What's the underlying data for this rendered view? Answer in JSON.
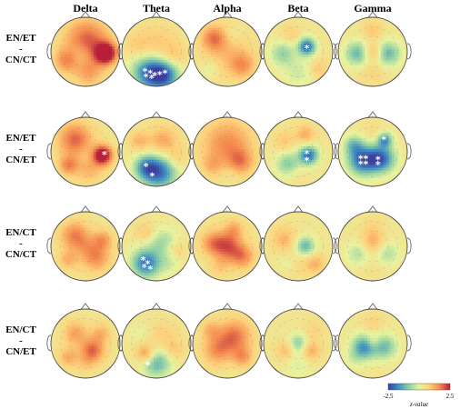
{
  "bands": [
    "Delta",
    "Theta",
    "Alpha",
    "Beta",
    "Gamma"
  ],
  "rows": [
    {
      "lines": [
        "EN/ET",
        "-",
        "CN/CT"
      ]
    },
    {
      "lines": [
        "EN/ET",
        "-",
        "CN/ET"
      ]
    },
    {
      "lines": [
        "EN/CT",
        "-",
        "CN/CT"
      ]
    },
    {
      "lines": [
        "EN/CT",
        "-",
        "CN/ET"
      ]
    }
  ],
  "significance_marker": "*",
  "colorbar": {
    "min_label": "-2.5",
    "max_label": "2.5",
    "title": "z-value",
    "colors": [
      "#3a3fa0",
      "#3f8ec4",
      "#8fd0a4",
      "#e8f3a0",
      "#fdd07a",
      "#f48a4f",
      "#b81f3b"
    ]
  },
  "significant_markers": [
    {
      "row": 0,
      "band": 1,
      "points": [
        [
          -0.33,
          0.56
        ],
        [
          -0.18,
          0.62
        ],
        [
          -0.05,
          0.68
        ],
        [
          0.1,
          0.66
        ],
        [
          0.25,
          0.62
        ],
        [
          -0.3,
          0.72
        ],
        [
          -0.14,
          0.76
        ]
      ]
    },
    {
      "row": 0,
      "band": 3,
      "points": [
        [
          0.25,
          -0.1
        ]
      ]
    },
    {
      "row": 1,
      "band": 0,
      "points": [
        [
          0.55,
          0.08
        ]
      ]
    },
    {
      "row": 1,
      "band": 1,
      "points": [
        [
          -0.3,
          0.42
        ],
        [
          -0.12,
          0.7
        ]
      ]
    },
    {
      "row": 1,
      "band": 3,
      "points": [
        [
          0.25,
          0.05
        ],
        [
          0.25,
          0.25
        ]
      ]
    },
    {
      "row": 1,
      "band": 4,
      "points": [
        [
          -0.35,
          0.2
        ],
        [
          -0.2,
          0.2
        ],
        [
          -0.35,
          0.35
        ],
        [
          -0.2,
          0.35
        ],
        [
          0.15,
          0.22
        ],
        [
          0.15,
          0.37
        ],
        [
          0.32,
          -0.35
        ]
      ]
    },
    {
      "row": 2,
      "band": 1,
      "points": [
        [
          -0.38,
          0.4
        ],
        [
          -0.25,
          0.5
        ],
        [
          -0.35,
          0.6
        ],
        [
          -0.18,
          0.66
        ]
      ]
    },
    {
      "row": 3,
      "band": 1,
      "points": [
        [
          -0.25,
          0.62
        ]
      ]
    }
  ],
  "topomaps": [
    [
      {
        "blobs": [
          [
            0.05,
            -0.3,
            0.45,
            1.7
          ],
          [
            0.6,
            0.05,
            0.22,
            2.6
          ],
          [
            -0.55,
            0.25,
            0.25,
            1.2
          ],
          [
            0.1,
            0.6,
            0.3,
            0.9
          ],
          [
            -0.2,
            0.1,
            0.25,
            -0.6
          ]
        ]
      },
      {
        "blobs": [
          [
            -0.2,
            0.6,
            0.35,
            -2.3
          ],
          [
            0.25,
            0.7,
            0.3,
            -2.0
          ],
          [
            0.0,
            -0.2,
            0.4,
            0.6
          ],
          [
            -0.6,
            -0.2,
            0.25,
            0.4
          ],
          [
            0.55,
            0.1,
            0.25,
            0.5
          ]
        ]
      },
      {
        "blobs": [
          [
            0.0,
            0.0,
            0.5,
            0.7
          ],
          [
            -0.4,
            -0.4,
            0.25,
            1.2
          ],
          [
            0.45,
            0.4,
            0.25,
            1.0
          ],
          [
            -0.5,
            0.5,
            0.2,
            -0.5
          ],
          [
            0.2,
            -0.5,
            0.2,
            -0.4
          ]
        ]
      },
      {
        "blobs": [
          [
            0.25,
            -0.15,
            0.18,
            -2.4
          ],
          [
            -0.45,
            0.05,
            0.25,
            -1.1
          ],
          [
            0.0,
            0.6,
            0.3,
            -0.6
          ],
          [
            -0.2,
            -0.5,
            0.2,
            0.5
          ],
          [
            0.6,
            0.5,
            0.2,
            0.6
          ]
        ]
      },
      {
        "blobs": [
          [
            -0.45,
            0.05,
            0.25,
            -1.5
          ],
          [
            0.45,
            0.05,
            0.25,
            -1.5
          ],
          [
            0.0,
            0.0,
            0.18,
            1.0
          ],
          [
            0.0,
            -0.6,
            0.2,
            0.6
          ],
          [
            0.0,
            0.6,
            0.25,
            0.4
          ]
        ]
      }
    ],
    [
      {
        "blobs": [
          [
            0.5,
            0.1,
            0.2,
            2.6
          ],
          [
            -0.3,
            -0.35,
            0.35,
            1.6
          ],
          [
            -0.5,
            0.4,
            0.2,
            1.2
          ],
          [
            0.1,
            0.5,
            0.3,
            0.8
          ],
          [
            0.0,
            0.1,
            0.2,
            -0.2
          ]
        ]
      },
      {
        "blobs": [
          [
            0.1,
            0.6,
            0.35,
            -2.2
          ],
          [
            -0.3,
            0.45,
            0.25,
            -1.6
          ],
          [
            0.2,
            -0.3,
            0.3,
            1.0
          ],
          [
            -0.5,
            -0.3,
            0.2,
            0.8
          ],
          [
            0.6,
            0.2,
            0.2,
            0.6
          ]
        ]
      },
      {
        "blobs": [
          [
            0.0,
            -0.2,
            0.5,
            1.3
          ],
          [
            0.4,
            0.3,
            0.25,
            1.0
          ],
          [
            -0.45,
            0.4,
            0.2,
            0.6
          ],
          [
            0.1,
            0.65,
            0.2,
            -0.2
          ]
        ]
      },
      {
        "blobs": [
          [
            0.3,
            0.1,
            0.2,
            -2.3
          ],
          [
            -0.3,
            0.35,
            0.25,
            -1.2
          ],
          [
            -0.4,
            -0.3,
            0.2,
            0.6
          ],
          [
            0.2,
            -0.5,
            0.2,
            0.9
          ],
          [
            0.0,
            0.65,
            0.2,
            0.2
          ]
        ]
      },
      {
        "blobs": [
          [
            -0.3,
            0.25,
            0.3,
            -2.4
          ],
          [
            0.25,
            0.2,
            0.28,
            -2.3
          ],
          [
            0.35,
            -0.35,
            0.15,
            -1.8
          ],
          [
            0.0,
            -0.55,
            0.2,
            0.3
          ],
          [
            -0.55,
            -0.2,
            0.2,
            -1.2
          ]
        ]
      }
    ],
    [
      {
        "blobs": [
          [
            -0.3,
            -0.3,
            0.3,
            1.4
          ],
          [
            0.3,
            0.3,
            0.3,
            1.3
          ],
          [
            0.5,
            -0.2,
            0.2,
            1.0
          ],
          [
            -0.5,
            0.4,
            0.2,
            0.8
          ],
          [
            0.0,
            0.0,
            0.2,
            0.3
          ]
        ]
      },
      {
        "blobs": [
          [
            -0.3,
            0.5,
            0.3,
            -2.2
          ],
          [
            0.2,
            -0.1,
            0.3,
            -1.0
          ],
          [
            0.4,
            0.5,
            0.2,
            -0.5
          ],
          [
            -0.3,
            -0.4,
            0.2,
            0.6
          ],
          [
            0.55,
            0.1,
            0.2,
            0.6
          ]
        ]
      },
      {
        "blobs": [
          [
            0.0,
            0.0,
            0.3,
            1.6
          ],
          [
            -0.45,
            -0.1,
            0.25,
            1.0
          ],
          [
            0.45,
            0.3,
            0.25,
            1.2
          ],
          [
            0.2,
            -0.5,
            0.2,
            0.8
          ],
          [
            -0.2,
            0.6,
            0.2,
            0.5
          ]
        ]
      },
      {
        "blobs": [
          [
            0.2,
            0.0,
            0.2,
            -1.6
          ],
          [
            -0.4,
            -0.2,
            0.25,
            0.8
          ],
          [
            0.0,
            0.5,
            0.3,
            0.3
          ],
          [
            0.5,
            0.5,
            0.2,
            0.8
          ],
          [
            -0.3,
            0.5,
            0.2,
            -0.4
          ]
        ]
      },
      {
        "blobs": [
          [
            -0.4,
            0.2,
            0.25,
            -0.9
          ],
          [
            0.4,
            0.2,
            0.25,
            -0.9
          ],
          [
            0.0,
            -0.1,
            0.25,
            1.0
          ],
          [
            0.0,
            0.6,
            0.25,
            0.2
          ],
          [
            0.0,
            -0.6,
            0.2,
            0.3
          ]
        ]
      }
    ],
    [
      {
        "blobs": [
          [
            0.2,
            0.2,
            0.25,
            1.6
          ],
          [
            -0.3,
            -0.3,
            0.25,
            1.0
          ],
          [
            0.45,
            -0.3,
            0.2,
            0.8
          ],
          [
            -0.5,
            0.4,
            0.2,
            0.9
          ],
          [
            0.0,
            0.6,
            0.2,
            0.4
          ]
        ]
      },
      {
        "blobs": [
          [
            -0.3,
            0.3,
            0.2,
            1.4
          ],
          [
            0.0,
            0.55,
            0.3,
            -1.6
          ],
          [
            0.2,
            -0.2,
            0.3,
            0.5
          ],
          [
            -0.5,
            -0.3,
            0.2,
            -0.3
          ],
          [
            0.5,
            0.2,
            0.2,
            0.6
          ]
        ]
      },
      {
        "blobs": [
          [
            0.2,
            -0.2,
            0.35,
            1.5
          ],
          [
            -0.3,
            0.2,
            0.3,
            1.1
          ],
          [
            0.45,
            0.4,
            0.2,
            1.0
          ],
          [
            -0.5,
            -0.4,
            0.2,
            0.7
          ]
        ]
      },
      {
        "blobs": [
          [
            0.0,
            0.0,
            0.2,
            -1.3
          ],
          [
            0.35,
            0.2,
            0.2,
            1.0
          ],
          [
            -0.35,
            0.2,
            0.2,
            0.8
          ],
          [
            0.0,
            0.6,
            0.25,
            -0.5
          ],
          [
            0.45,
            -0.4,
            0.2,
            0.4
          ]
        ]
      },
      {
        "blobs": [
          [
            -0.25,
            0.1,
            0.25,
            -2.0
          ],
          [
            0.35,
            0.1,
            0.25,
            -1.4
          ],
          [
            0.0,
            -0.05,
            0.15,
            0.7
          ],
          [
            0.0,
            -0.6,
            0.2,
            0.4
          ],
          [
            -0.55,
            0.45,
            0.2,
            -0.4
          ]
        ]
      }
    ]
  ]
}
